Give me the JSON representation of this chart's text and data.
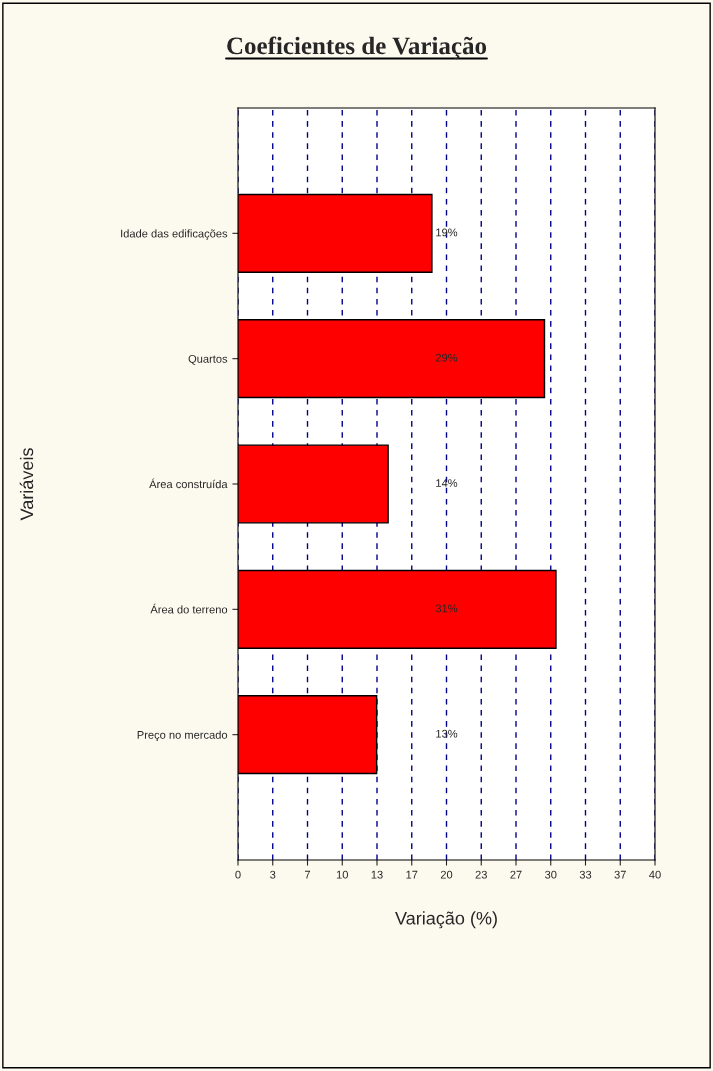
{
  "chart_data": {
    "type": "bar",
    "orientation": "horizontal",
    "title": "Coeficientes de Variação",
    "xlabel": "Variação (%)",
    "ylabel": "Variáveis",
    "categories": [
      "Idade das edificações",
      "Quartos",
      "Área construída",
      "Área do terreno",
      "Preço no mercado"
    ],
    "values": [
      18.6,
      29.4,
      14.4,
      30.5,
      13.3
    ],
    "value_labels": [
      "19%",
      "29%",
      "14%",
      "31%",
      "13%"
    ],
    "color": "#ff0000",
    "xlim": [
      0,
      40
    ],
    "xticks": [
      0,
      {
        "value": 3.333,
        "label": "3"
      },
      {
        "value": 6.667,
        "label": "7"
      },
      10,
      {
        "value": 13.333,
        "label": "13"
      },
      {
        "value": 16.667,
        "label": "17"
      },
      20,
      {
        "value": 23.333,
        "label": "23"
      },
      {
        "value": 26.667,
        "label": "27"
      },
      30,
      {
        "value": 33.333,
        "label": "33"
      },
      {
        "value": 36.667,
        "label": "37"
      },
      40
    ],
    "grid": "x",
    "legend": false
  }
}
